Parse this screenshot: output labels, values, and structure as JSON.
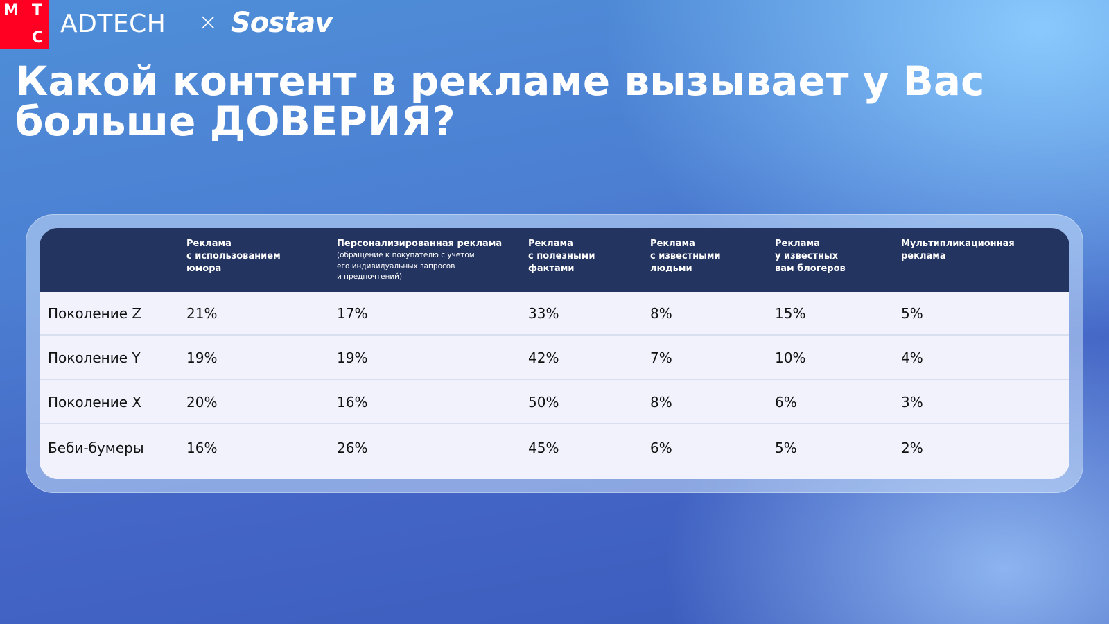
{
  "logo": {
    "letters": [
      "М",
      "Т",
      "С"
    ],
    "color": "#ff0023"
  },
  "brand": {
    "adtech": "ADTECH",
    "separator": "×",
    "partner": "Sostav"
  },
  "title": "Какой контент в рекламе вызывает у Вас больше ДОВЕРИЯ?",
  "table": {
    "columns": [
      {
        "label": "Реклама\nс использованием\nюмора",
        "note": ""
      },
      {
        "label": "Персонализированная реклама",
        "note": "(обращение к покупателю с учётом\nего индивидуальных запросов\nи предпочтений)"
      },
      {
        "label": "Реклама\nс полезными\nфактами",
        "note": ""
      },
      {
        "label": "Реклама\nс известными\nлюдьми",
        "note": ""
      },
      {
        "label": "Реклама\nу известных\nвам блогеров",
        "note": ""
      },
      {
        "label": "Мультипликационная\nреклама",
        "note": ""
      }
    ],
    "rows": [
      {
        "name": "Поколение Z",
        "values": [
          "21%",
          "17%",
          "33%",
          "8%",
          "15%",
          "5%"
        ]
      },
      {
        "name": "Поколение Y",
        "values": [
          "19%",
          "19%",
          "42%",
          "7%",
          "10%",
          "4%"
        ]
      },
      {
        "name": "Поколение X",
        "values": [
          "20%",
          "16%",
          "50%",
          "8%",
          "6%",
          "3%"
        ]
      },
      {
        "name": "Беби-бумеры",
        "values": [
          "16%",
          "26%",
          "45%",
          "6%",
          "5%",
          "2%"
        ]
      }
    ],
    "colors": {
      "header_bg": "#243460",
      "body_bg": "#f2f2fc",
      "row_divider": "#dadff0"
    }
  }
}
